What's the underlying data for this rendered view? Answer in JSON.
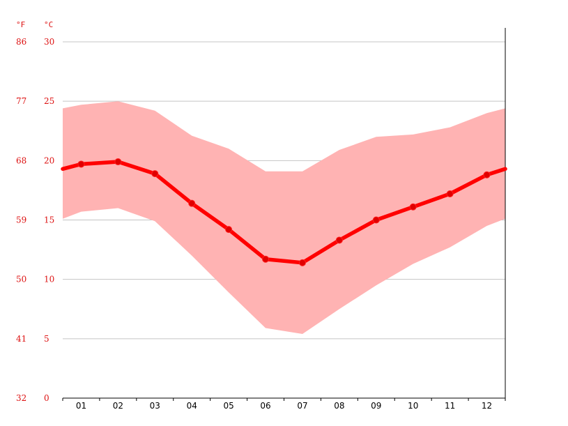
{
  "chart_data": {
    "type": "line",
    "title": "",
    "xlabel": "",
    "ylabel": "",
    "categories": [
      "01",
      "02",
      "03",
      "04",
      "05",
      "06",
      "07",
      "08",
      "09",
      "10",
      "11",
      "12"
    ],
    "units": {
      "left": "°F",
      "right": "°C"
    },
    "y_ticks_c": [
      0,
      5,
      10,
      15,
      20,
      25,
      30
    ],
    "y_ticks_f": [
      32,
      41,
      50,
      59,
      68,
      77,
      86
    ],
    "ylim": [
      0,
      30
    ],
    "grid": true,
    "series": [
      {
        "kind": "line",
        "color": "#ff0000",
        "values": [
          19.7,
          19.9,
          18.9,
          16.4,
          14.2,
          11.7,
          11.4,
          13.3,
          15.0,
          16.1,
          17.2,
          18.8
        ],
        "edges": [
          19.3,
          19.3
        ]
      },
      {
        "kind": "band",
        "color": "#ffb3b3",
        "upper": [
          24.7,
          25.0,
          24.2,
          22.1,
          21.0,
          19.1,
          19.1,
          20.9,
          22.0,
          22.2,
          22.8,
          24.0
        ],
        "lower": [
          15.7,
          16.0,
          14.9,
          12.0,
          8.9,
          5.9,
          5.4,
          7.5,
          9.5,
          11.3,
          12.7,
          14.5
        ],
        "upper_edges": [
          24.4,
          24.4
        ],
        "lower_edges": [
          15.1,
          15.1
        ]
      }
    ]
  }
}
